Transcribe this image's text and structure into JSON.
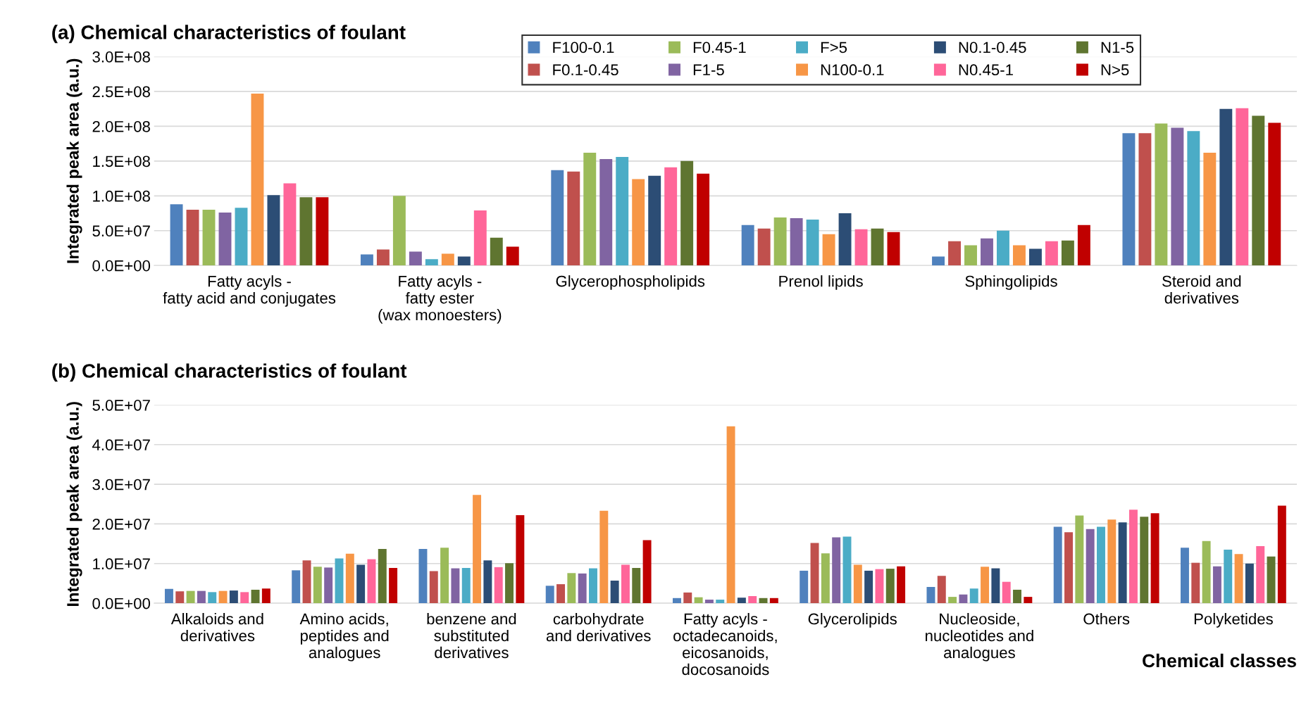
{
  "chart_data": [
    {
      "type": "bar",
      "title": "(a) Chemical characteristics of foulant",
      "ylabel": "Integrated peak area (a.u.)",
      "legend": "top right",
      "grid": "y",
      "categories": [
        "Fatty acyls -\nfatty acid and conjugates",
        "Fatty acyls -\nfatty ester\n(wax monoesters)",
        "Glycerophospholipids",
        "Prenol lipids",
        "Sphingolipids",
        "Steroid and\nderivatives"
      ],
      "ylim": [
        0,
        300000000
      ],
      "yticks": [
        {
          "value": 0,
          "label": "0.0E+00"
        },
        {
          "value": 50000000,
          "label": "5.0E+07"
        },
        {
          "value": 100000000,
          "label": "1.0E+08"
        },
        {
          "value": 150000000,
          "label": "1.5E+08"
        },
        {
          "value": 200000000,
          "label": "2.0E+08"
        },
        {
          "value": 250000000,
          "label": "2.5E+08"
        },
        {
          "value": 300000000,
          "label": "3.0E+08"
        }
      ],
      "series": [
        {
          "name": "F100-0.1",
          "color": "#4f81bd",
          "values": [
            88000000,
            16000000,
            137000000,
            58000000,
            13000000,
            190000000
          ]
        },
        {
          "name": "F0.1-0.45",
          "color": "#c0504d",
          "values": [
            80000000,
            23000000,
            135000000,
            53000000,
            35000000,
            190000000
          ]
        },
        {
          "name": "F0.45-1",
          "color": "#9bbb59",
          "values": [
            80000000,
            100000000,
            162000000,
            69000000,
            29000000,
            204000000
          ]
        },
        {
          "name": "F1-5",
          "color": "#8064a2",
          "values": [
            76000000,
            20000000,
            153000000,
            68000000,
            39000000,
            198000000
          ]
        },
        {
          "name": "F>5",
          "color": "#4bacc6",
          "values": [
            83000000,
            9000000,
            156000000,
            66000000,
            50000000,
            193000000
          ]
        },
        {
          "name": "N100-0.1",
          "color": "#f79646",
          "values": [
            247000000,
            17000000,
            124000000,
            45000000,
            29000000,
            162000000
          ]
        },
        {
          "name": "N0.1-0.45",
          "color": "#2c4d75",
          "values": [
            101000000,
            13000000,
            129000000,
            75000000,
            24000000,
            225000000
          ]
        },
        {
          "name": "N0.45-1",
          "color": "#ff6699",
          "values": [
            118000000,
            79000000,
            141000000,
            52000000,
            35000000,
            226000000
          ]
        },
        {
          "name": "N1-5",
          "color": "#5f7530",
          "values": [
            98000000,
            40000000,
            150000000,
            53000000,
            36000000,
            215000000
          ]
        },
        {
          "name": "N>5",
          "color": "#c00000",
          "values": [
            98000000,
            27000000,
            132000000,
            48000000,
            58000000,
            205000000
          ]
        }
      ]
    },
    {
      "type": "bar",
      "title": "(b) Chemical characteristics of foulant",
      "ylabel": "Integrated peak area (a.u.)",
      "xlabel": "Chemical classes",
      "grid": "y",
      "categories": [
        "Alkaloids and\nderivatives",
        "Amino acids,\npeptides and\nanalogues",
        "benzene and\nsubstituted\nderivatives",
        "carbohydrate\nand derivatives",
        "Fatty acyls -\noctadecanoids,\neicosanoids,\ndocosanoids",
        "Glycerolipids",
        "Nucleoside,\nnucleotides and\nanalogues",
        "Others",
        "Polyketides"
      ],
      "ylim": [
        0,
        50000000
      ],
      "yticks": [
        {
          "value": 0,
          "label": "0.0E+00"
        },
        {
          "value": 10000000,
          "label": "1.0E+07"
        },
        {
          "value": 20000000,
          "label": "2.0E+07"
        },
        {
          "value": 30000000,
          "label": "3.0E+07"
        },
        {
          "value": 40000000,
          "label": "4.0E+07"
        },
        {
          "value": 50000000,
          "label": "5.0E+07"
        }
      ],
      "series": [
        {
          "color": "#4f81bd",
          "values": [
            3600000,
            8300000,
            13700000,
            4400000,
            1300000,
            8200000,
            4100000,
            19300000,
            14000000
          ]
        },
        {
          "color": "#c0504d",
          "values": [
            3000000,
            10800000,
            8100000,
            4800000,
            2700000,
            15200000,
            6900000,
            17900000,
            10200000
          ]
        },
        {
          "color": "#9bbb59",
          "values": [
            3100000,
            9200000,
            14000000,
            7600000,
            1500000,
            12600000,
            1600000,
            22100000,
            15700000
          ]
        },
        {
          "color": "#8064a2",
          "values": [
            3100000,
            9000000,
            8800000,
            7500000,
            900000,
            16600000,
            2200000,
            18700000,
            9300000
          ]
        },
        {
          "color": "#4bacc6",
          "values": [
            2800000,
            11300000,
            8900000,
            8800000,
            900000,
            16800000,
            3700000,
            19300000,
            13500000
          ]
        },
        {
          "color": "#f79646",
          "values": [
            3100000,
            12500000,
            27300000,
            23300000,
            44600000,
            9700000,
            9200000,
            21100000,
            12400000
          ]
        },
        {
          "color": "#2c4d75",
          "values": [
            3200000,
            9700000,
            10800000,
            5700000,
            1400000,
            8200000,
            8800000,
            20400000,
            10000000
          ]
        },
        {
          "color": "#ff6699",
          "values": [
            2800000,
            11100000,
            9100000,
            9700000,
            1800000,
            8600000,
            5400000,
            23600000,
            14400000
          ]
        },
        {
          "color": "#5f7530",
          "values": [
            3400000,
            13700000,
            10100000,
            8900000,
            1300000,
            8700000,
            3400000,
            21800000,
            11800000
          ]
        },
        {
          "color": "#c00000",
          "values": [
            3700000,
            8900000,
            22200000,
            15900000,
            1300000,
            9300000,
            1600000,
            22700000,
            24600000
          ]
        }
      ]
    }
  ]
}
